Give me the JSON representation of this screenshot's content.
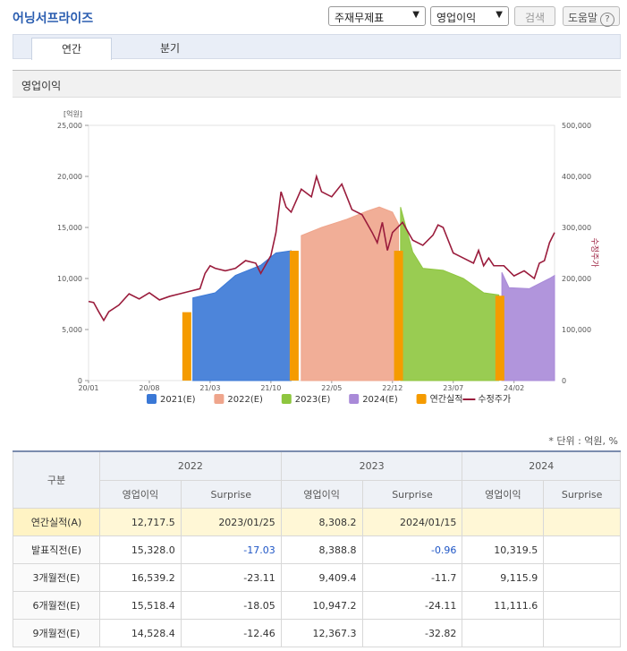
{
  "company": "어닝서프라이즈",
  "controls": {
    "report_select": "주재무제표",
    "item_select": "영업이익",
    "search_button": "검색",
    "help_button": "도움말",
    "help_icon_char": "?"
  },
  "tabs": [
    {
      "label": "연간"
    },
    {
      "label": "분기"
    }
  ],
  "section_title": "영업이익",
  "chart_data": {
    "type": "area",
    "left_axis": {
      "unit_label": "[억원]",
      "ticks": [
        "0",
        "5,000",
        "10,000",
        "15,000",
        "20,000",
        "25,000"
      ],
      "range": [
        0,
        25000
      ]
    },
    "right_axis": {
      "ticks": [
        "0",
        "100,000",
        "200,000",
        "300,000",
        "400,000",
        "500,000"
      ],
      "range": [
        0,
        500000
      ],
      "label": "수정주가"
    },
    "x_ticks": [
      "20/01",
      "20/08",
      "21/03",
      "21/10",
      "22/05",
      "22/12",
      "23/07",
      "24/02"
    ],
    "legend": [
      {
        "label": "2021(E)",
        "color": "#3a78d6"
      },
      {
        "label": "2022(E)",
        "color": "#efa58c"
      },
      {
        "label": "2023(E)",
        "color": "#8ec63f"
      },
      {
        "label": "2024(E)",
        "color": "#a98ad8"
      },
      {
        "label": "연간실적",
        "color": "#f59b00"
      },
      {
        "label": "수정주가",
        "color": "#9a1c3c"
      }
    ],
    "estimate_series": [
      {
        "name": "2021(E)",
        "points": [
          [
            2021.03,
            8100
          ],
          [
            2021.25,
            8600
          ],
          [
            2021.45,
            10300
          ],
          [
            2021.7,
            11300
          ],
          [
            2021.85,
            12500
          ],
          [
            2022.0,
            12717
          ]
        ]
      },
      {
        "name": "2022(E)",
        "points": [
          [
            2022.1,
            14200
          ],
          [
            2022.3,
            15000
          ],
          [
            2022.55,
            15800
          ],
          [
            2022.75,
            16600
          ],
          [
            2022.87,
            17000
          ],
          [
            2023.0,
            16500
          ],
          [
            2023.06,
            15328
          ]
        ]
      },
      {
        "name": "2023(E)",
        "points": [
          [
            2023.08,
            17000
          ],
          [
            2023.2,
            12600
          ],
          [
            2023.3,
            11000
          ],
          [
            2023.5,
            10800
          ],
          [
            2023.7,
            10000
          ],
          [
            2023.9,
            8600
          ],
          [
            2024.05,
            8389
          ]
        ]
      },
      {
        "name": "2024(E)",
        "points": [
          [
            2024.08,
            10600
          ],
          [
            2024.15,
            9100
          ],
          [
            2024.35,
            9000
          ],
          [
            2024.55,
            10000
          ],
          [
            2024.6,
            10300
          ]
        ]
      }
    ],
    "actual_bars": [
      {
        "year": "2020",
        "x": 2020.97,
        "value": 6700
      },
      {
        "year": "2021",
        "x": 2022.03,
        "value": 12717
      },
      {
        "year": "2022",
        "x": 2023.06,
        "value": 12717.5
      },
      {
        "year": "2023",
        "x": 2024.06,
        "value": 8308.2
      }
    ],
    "price": [
      [
        2020.0,
        155000
      ],
      [
        2020.05,
        153000
      ],
      [
        2020.1,
        135000
      ],
      [
        2020.15,
        118000
      ],
      [
        2020.2,
        135000
      ],
      [
        2020.3,
        148000
      ],
      [
        2020.4,
        170000
      ],
      [
        2020.5,
        160000
      ],
      [
        2020.6,
        172000
      ],
      [
        2020.7,
        158000
      ],
      [
        2020.8,
        165000
      ],
      [
        2020.9,
        170000
      ],
      [
        2021.0,
        175000
      ],
      [
        2021.1,
        180000
      ],
      [
        2021.15,
        210000
      ],
      [
        2021.2,
        225000
      ],
      [
        2021.25,
        220000
      ],
      [
        2021.35,
        215000
      ],
      [
        2021.45,
        220000
      ],
      [
        2021.55,
        235000
      ],
      [
        2021.65,
        230000
      ],
      [
        2021.7,
        210000
      ],
      [
        2021.8,
        245000
      ],
      [
        2021.85,
        290000
      ],
      [
        2021.9,
        370000
      ],
      [
        2021.95,
        340000
      ],
      [
        2022.0,
        330000
      ],
      [
        2022.1,
        375000
      ],
      [
        2022.2,
        360000
      ],
      [
        2022.25,
        400000
      ],
      [
        2022.3,
        370000
      ],
      [
        2022.4,
        360000
      ],
      [
        2022.5,
        385000
      ],
      [
        2022.6,
        335000
      ],
      [
        2022.7,
        325000
      ],
      [
        2022.8,
        290000
      ],
      [
        2022.85,
        270000
      ],
      [
        2022.9,
        310000
      ],
      [
        2022.95,
        255000
      ],
      [
        2023.0,
        290000
      ],
      [
        2023.1,
        310000
      ],
      [
        2023.2,
        275000
      ],
      [
        2023.3,
        265000
      ],
      [
        2023.4,
        285000
      ],
      [
        2023.45,
        305000
      ],
      [
        2023.5,
        300000
      ],
      [
        2023.6,
        250000
      ],
      [
        2023.7,
        240000
      ],
      [
        2023.8,
        230000
      ],
      [
        2023.85,
        255000
      ],
      [
        2023.9,
        225000
      ],
      [
        2023.95,
        240000
      ],
      [
        2024.0,
        225000
      ],
      [
        2024.1,
        225000
      ],
      [
        2024.2,
        205000
      ],
      [
        2024.3,
        215000
      ],
      [
        2024.4,
        200000
      ],
      [
        2024.45,
        230000
      ],
      [
        2024.5,
        235000
      ],
      [
        2024.55,
        270000
      ],
      [
        2024.6,
        290000
      ]
    ]
  },
  "unit_note": "* 단위 : 억원, %",
  "table": {
    "header_first": "구분",
    "years": [
      "2022",
      "2023",
      "2024"
    ],
    "sub_headers": [
      "영업이익",
      "Surprise",
      "영업이익",
      "Surprise",
      "영업이익",
      "Surprise"
    ],
    "rows": [
      {
        "label": "연간실적(A)",
        "cells": [
          "12,717.5",
          "2023/01/25",
          "8,308.2",
          "2024/01/15",
          "",
          ""
        ],
        "highlight": true
      },
      {
        "label": "발표직전(E)",
        "cells": [
          "15,328.0",
          "-17.03",
          "8,388.8",
          "-0.96",
          "10,319.5",
          ""
        ]
      },
      {
        "label": "3개월전(E)",
        "cells": [
          "16,539.2",
          "-23.11",
          "9,409.4",
          "-11.7",
          "9,115.9",
          ""
        ]
      },
      {
        "label": "6개월전(E)",
        "cells": [
          "15,518.4",
          "-18.05",
          "10,947.2",
          "-24.11",
          "11,111.6",
          ""
        ]
      },
      {
        "label": "9개월전(E)",
        "cells": [
          "14,528.4",
          "-12.46",
          "12,367.3",
          "-32.82",
          "",
          ""
        ]
      }
    ]
  }
}
